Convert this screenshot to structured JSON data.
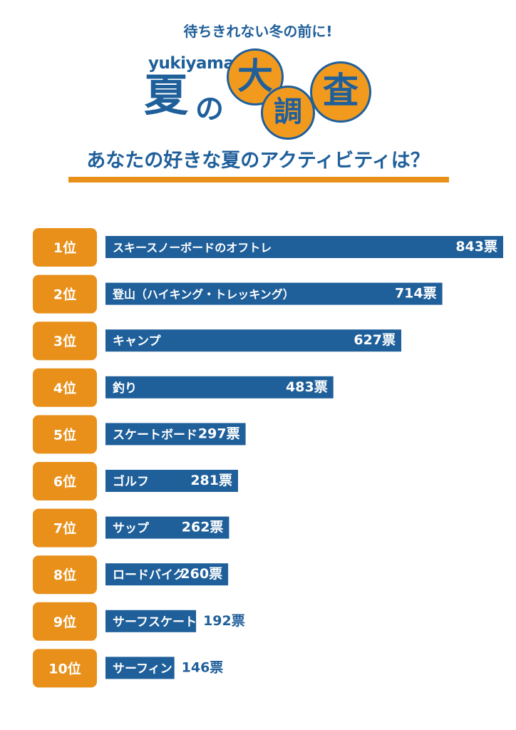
{
  "header": {
    "subtitle": "待ちきれない冬の前に!",
    "brand": "yukiyama",
    "title_natsu": "夏",
    "title_no": "の",
    "title_chars": [
      "大",
      "調",
      "査"
    ],
    "question": "あなたの好きな夏のアクティビティは？"
  },
  "colors": {
    "bar": "#1f5f9a",
    "rank_badge": "#e8901a",
    "text_on_bar": "#ffffff",
    "value_text": "#1f5f9a"
  },
  "chart_data": {
    "type": "bar",
    "orientation": "horizontal",
    "title": "あなたの好きな夏のアクティビティは？",
    "unit": "票",
    "categories": [
      "スキースノーボードのオフトレ",
      "登山（ハイキング・トレッキング）",
      "キャンプ",
      "釣り",
      "スケートボード",
      "ゴルフ",
      "サップ",
      "ロードバイク",
      "サーフスケート",
      "サーフィン"
    ],
    "ranks": [
      "1位",
      "2位",
      "3位",
      "4位",
      "5位",
      "6位",
      "7位",
      "8位",
      "9位",
      "10位"
    ],
    "values": [
      843,
      714,
      627,
      483,
      297,
      281,
      262,
      260,
      192,
      146
    ],
    "value_labels": [
      "843票",
      "714票",
      "627票",
      "483票",
      "297票",
      "281票",
      "262票",
      "260票",
      "192票",
      "146票"
    ]
  }
}
